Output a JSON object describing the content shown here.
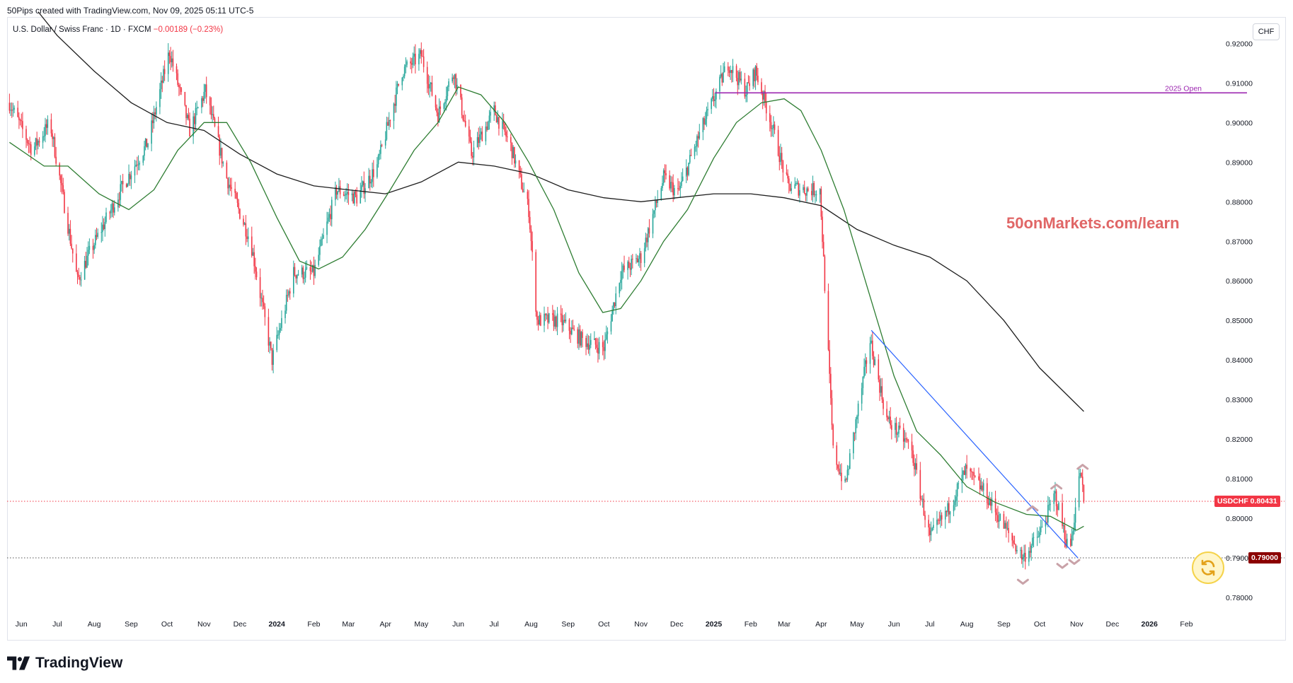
{
  "header": {
    "created_by": "50Pips created with TradingView.com, Nov 09, 2025 05:11 UTC-5",
    "symbol_desc": "U.S. Dollar / Swiss Franc · 1D · FXCM",
    "change": "−0.00189 (−0.23%)",
    "currency_button": "CHF"
  },
  "watermark_text": "50onMarkets.com/learn",
  "brand": "TradingView",
  "colors": {
    "up": "#26a69a",
    "down": "#f23645",
    "sma_fast": "#2e7d32",
    "sma_slow": "#1e1e1e",
    "trendline": "#2962ff",
    "open_line": "#9c27b0",
    "watermark": "#e06666",
    "markers": "#c9a2a8",
    "last_price_tag": "#f23645",
    "level_tag": "#8b0000"
  },
  "icons": [
    "tradingview-logo-icon",
    "refresh-icon"
  ],
  "chart_data": {
    "type": "candlestick",
    "title": "U.S. Dollar / Swiss Franc · 1D · FXCM",
    "symbol": "USDCHF",
    "ylim": [
      0.775,
      0.9265
    ],
    "x_range": [
      "2023-05-20",
      "2026-02-28"
    ],
    "y_ticks": [
      "0.78000",
      "0.79000",
      "0.80000",
      "0.81000",
      "0.82000",
      "0.83000",
      "0.84000",
      "0.85000",
      "0.86000",
      "0.87000",
      "0.88000",
      "0.89000",
      "0.90000",
      "0.91000",
      "0.92000"
    ],
    "x_ticks": [
      {
        "label": "Jun",
        "date": "2023-06-01"
      },
      {
        "label": "Jul",
        "date": "2023-07-01"
      },
      {
        "label": "Aug",
        "date": "2023-08-01"
      },
      {
        "label": "Sep",
        "date": "2023-09-01"
      },
      {
        "label": "Oct",
        "date": "2023-10-01"
      },
      {
        "label": "Nov",
        "date": "2023-11-01"
      },
      {
        "label": "Dec",
        "date": "2023-12-01"
      },
      {
        "label": "2024",
        "date": "2024-01-01",
        "bold": true
      },
      {
        "label": "Feb",
        "date": "2024-02-01"
      },
      {
        "label": "Mar",
        "date": "2024-03-01"
      },
      {
        "label": "Apr",
        "date": "2024-04-01"
      },
      {
        "label": "May",
        "date": "2024-05-01"
      },
      {
        "label": "Jun",
        "date": "2024-06-01"
      },
      {
        "label": "Jul",
        "date": "2024-07-01"
      },
      {
        "label": "Aug",
        "date": "2024-08-01"
      },
      {
        "label": "Sep",
        "date": "2024-09-01"
      },
      {
        "label": "Oct",
        "date": "2024-10-01"
      },
      {
        "label": "Nov",
        "date": "2024-11-01"
      },
      {
        "label": "Dec",
        "date": "2024-12-01"
      },
      {
        "label": "2025",
        "date": "2025-01-01",
        "bold": true
      },
      {
        "label": "Feb",
        "date": "2025-02-01"
      },
      {
        "label": "Mar",
        "date": "2025-03-01"
      },
      {
        "label": "Apr",
        "date": "2025-04-01"
      },
      {
        "label": "May",
        "date": "2025-05-01"
      },
      {
        "label": "Jun",
        "date": "2025-06-01"
      },
      {
        "label": "Jul",
        "date": "2025-07-01"
      },
      {
        "label": "Aug",
        "date": "2025-08-01"
      },
      {
        "label": "Sep",
        "date": "2025-09-01"
      },
      {
        "label": "Oct",
        "date": "2025-10-01"
      },
      {
        "label": "Nov",
        "date": "2025-11-01"
      },
      {
        "label": "Dec",
        "date": "2025-12-01"
      },
      {
        "label": "2026",
        "date": "2026-01-01",
        "bold": true
      },
      {
        "label": "Feb",
        "date": "2026-02-01"
      }
    ],
    "price_path": [
      [
        "2023-05-22",
        0.905
      ],
      [
        "2023-06-10",
        0.893
      ],
      [
        "2023-06-25",
        0.9
      ],
      [
        "2023-07-18",
        0.86
      ],
      [
        "2023-07-28",
        0.867
      ],
      [
        "2023-08-25",
        0.884
      ],
      [
        "2023-09-15",
        0.895
      ],
      [
        "2023-10-03",
        0.918
      ],
      [
        "2023-10-20",
        0.898
      ],
      [
        "2023-11-02",
        0.908
      ],
      [
        "2023-11-20",
        0.886
      ],
      [
        "2023-12-10",
        0.87
      ],
      [
        "2023-12-28",
        0.84
      ],
      [
        "2024-01-15",
        0.862
      ],
      [
        "2024-02-01",
        0.862
      ],
      [
        "2024-02-20",
        0.883
      ],
      [
        "2024-03-08",
        0.881
      ],
      [
        "2024-03-25",
        0.889
      ],
      [
        "2024-04-15",
        0.913
      ],
      [
        "2024-05-01",
        0.917
      ],
      [
        "2024-05-15",
        0.902
      ],
      [
        "2024-05-28",
        0.913
      ],
      [
        "2024-06-12",
        0.892
      ],
      [
        "2024-07-01",
        0.903
      ],
      [
        "2024-07-15",
        0.894
      ],
      [
        "2024-07-30",
        0.878
      ],
      [
        "2024-08-06",
        0.85
      ],
      [
        "2024-08-25",
        0.85
      ],
      [
        "2024-09-13",
        0.845
      ],
      [
        "2024-10-01",
        0.843
      ],
      [
        "2024-10-15",
        0.862
      ],
      [
        "2024-11-01",
        0.866
      ],
      [
        "2024-11-20",
        0.886
      ],
      [
        "2024-12-02",
        0.882
      ],
      [
        "2024-12-20",
        0.897
      ],
      [
        "2025-01-13",
        0.915
      ],
      [
        "2025-01-28",
        0.908
      ],
      [
        "2025-02-05",
        0.913
      ],
      [
        "2025-02-18",
        0.9
      ],
      [
        "2025-03-04",
        0.884
      ],
      [
        "2025-03-20",
        0.883
      ],
      [
        "2025-03-31",
        0.883
      ],
      [
        "2025-04-03",
        0.865
      ],
      [
        "2025-04-11",
        0.817
      ],
      [
        "2025-04-21",
        0.808
      ],
      [
        "2025-05-01",
        0.826
      ],
      [
        "2025-05-12",
        0.845
      ],
      [
        "2025-05-26",
        0.825
      ],
      [
        "2025-06-15",
        0.818
      ],
      [
        "2025-07-01",
        0.795
      ],
      [
        "2025-07-16",
        0.802
      ],
      [
        "2025-07-31",
        0.812
      ],
      [
        "2025-08-15",
        0.807
      ],
      [
        "2025-09-05",
        0.796
      ],
      [
        "2025-09-17",
        0.79
      ],
      [
        "2025-10-01",
        0.796
      ],
      [
        "2025-10-14",
        0.806
      ],
      [
        "2025-10-26",
        0.791
      ],
      [
        "2025-11-04",
        0.812
      ],
      [
        "2025-11-07",
        0.80431
      ]
    ],
    "sma_fast": [
      [
        "2023-05-22",
        0.895
      ],
      [
        "2023-06-20",
        0.889
      ],
      [
        "2023-07-10",
        0.889
      ],
      [
        "2023-08-05",
        0.882
      ],
      [
        "2023-08-30",
        0.878
      ],
      [
        "2023-09-20",
        0.883
      ],
      [
        "2023-10-10",
        0.893
      ],
      [
        "2023-11-01",
        0.9
      ],
      [
        "2023-11-20",
        0.9
      ],
      [
        "2023-12-10",
        0.89
      ],
      [
        "2024-01-01",
        0.876
      ],
      [
        "2024-01-20",
        0.865
      ],
      [
        "2024-02-05",
        0.863
      ],
      [
        "2024-02-25",
        0.866
      ],
      [
        "2024-03-15",
        0.873
      ],
      [
        "2024-04-05",
        0.883
      ],
      [
        "2024-04-25",
        0.893
      ],
      [
        "2024-05-15",
        0.9
      ],
      [
        "2024-06-01",
        0.909
      ],
      [
        "2024-06-20",
        0.907
      ],
      [
        "2024-07-10",
        0.9
      ],
      [
        "2024-07-30",
        0.89
      ],
      [
        "2024-08-20",
        0.878
      ],
      [
        "2024-09-10",
        0.862
      ],
      [
        "2024-09-30",
        0.852
      ],
      [
        "2024-10-15",
        0.853
      ],
      [
        "2024-11-01",
        0.86
      ],
      [
        "2024-11-20",
        0.87
      ],
      [
        "2024-12-10",
        0.878
      ],
      [
        "2025-01-01",
        0.891
      ],
      [
        "2025-01-20",
        0.9
      ],
      [
        "2025-02-10",
        0.905
      ],
      [
        "2025-03-01",
        0.906
      ],
      [
        "2025-03-15",
        0.903
      ],
      [
        "2025-04-01",
        0.893
      ],
      [
        "2025-04-20",
        0.878
      ],
      [
        "2025-05-10",
        0.858
      ],
      [
        "2025-06-01",
        0.836
      ],
      [
        "2025-06-20",
        0.822
      ],
      [
        "2025-07-10",
        0.816
      ],
      [
        "2025-08-01",
        0.808
      ],
      [
        "2025-08-25",
        0.804
      ],
      [
        "2025-09-20",
        0.801
      ],
      [
        "2025-10-10",
        0.8005
      ],
      [
        "2025-11-01",
        0.797
      ],
      [
        "2025-11-07",
        0.798
      ]
    ],
    "sma_slow": [
      [
        "2023-06-15",
        0.928
      ],
      [
        "2023-07-01",
        0.922
      ],
      [
        "2023-08-01",
        0.913
      ],
      [
        "2023-09-01",
        0.905
      ],
      [
        "2023-10-01",
        0.9
      ],
      [
        "2023-11-01",
        0.898
      ],
      [
        "2023-12-01",
        0.892
      ],
      [
        "2024-01-01",
        0.887
      ],
      [
        "2024-02-01",
        0.884
      ],
      [
        "2024-03-01",
        0.883
      ],
      [
        "2024-04-01",
        0.882
      ],
      [
        "2024-05-01",
        0.885
      ],
      [
        "2024-06-01",
        0.89
      ],
      [
        "2024-07-01",
        0.889
      ],
      [
        "2024-08-01",
        0.887
      ],
      [
        "2024-09-01",
        0.883
      ],
      [
        "2024-10-01",
        0.881
      ],
      [
        "2024-11-01",
        0.88
      ],
      [
        "2024-12-01",
        0.881
      ],
      [
        "2025-01-01",
        0.882
      ],
      [
        "2025-02-01",
        0.882
      ],
      [
        "2025-03-01",
        0.881
      ],
      [
        "2025-04-01",
        0.879
      ],
      [
        "2025-05-01",
        0.873
      ],
      [
        "2025-06-01",
        0.869
      ],
      [
        "2025-07-01",
        0.866
      ],
      [
        "2025-08-01",
        0.86
      ],
      [
        "2025-09-01",
        0.85
      ],
      [
        "2025-10-01",
        0.838
      ],
      [
        "2025-11-07",
        0.827
      ]
    ],
    "trendline": {
      "from": [
        "2025-05-13",
        0.8475
      ],
      "to": [
        "2025-11-02",
        0.79
      ]
    },
    "open_line": {
      "label": "2025 Open",
      "value": 0.9075,
      "from": "2025-01-02"
    },
    "level_line": {
      "value": 0.79,
      "label": "0.79000"
    },
    "last_price": {
      "symbol": "USDCHF",
      "value": "0.80431"
    },
    "pivot_markers": [
      {
        "date": "2025-09-17",
        "value": 0.7835,
        "dir": "down"
      },
      {
        "date": "2025-09-25",
        "value": 0.803,
        "dir": "up"
      },
      {
        "date": "2025-10-15",
        "value": 0.8085,
        "dir": "up"
      },
      {
        "date": "2025-10-20",
        "value": 0.7875,
        "dir": "down"
      },
      {
        "date": "2025-10-30",
        "value": 0.7885,
        "dir": "down"
      },
      {
        "date": "2025-11-06",
        "value": 0.8135,
        "dir": "up"
      }
    ]
  }
}
